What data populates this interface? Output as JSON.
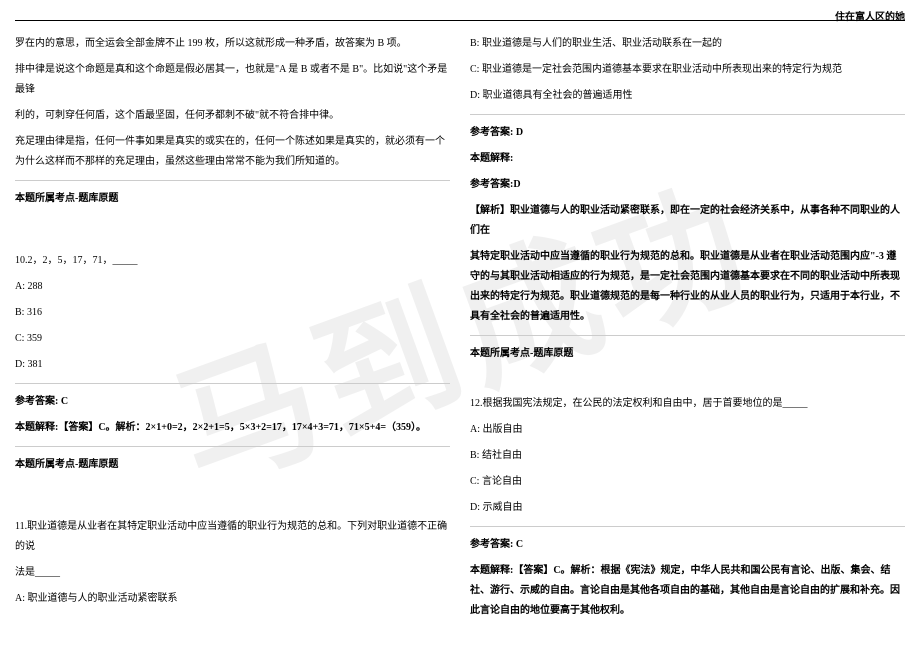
{
  "header": {
    "title": "住在富人区的她"
  },
  "watermark": "马到成功",
  "leftColumn": {
    "para1": "罗在内的意思，而全运会全部金牌不止 199 枚，所以这就形成一种矛盾，故答案为 B 项。",
    "para2": "排中律是说这个命题是真和这个命题是假必居其一，也就是\"A 是 B 或者不是 B\"。比如说\"这个矛是最锋",
    "para3": "利的，可刺穿任何盾，这个盾最坚固，任何矛都刺不破\"就不符合排中律。",
    "para4": "充足理由律是指，任何一件事如果是真实的或实在的，任何一个陈述如果是真实的，就必须有一个为什么这样而不那样的充足理由，虽然这些理由常常不能为我们所知道的。",
    "topicLabel1": "本题所属考点-题库原题",
    "q10num": "10.2，2，5，17，71，_____",
    "q10a": "A: 288",
    "q10b": "B: 316",
    "q10c": "C: 359",
    "q10d": "D: 381",
    "q10answer": "参考答案: C",
    "q10explain": "本题解释:【答案】C。解析：2×1+0=2，2×2+1=5，5×3+2=17，17×4+3=71，71×5+4=（359）。",
    "topicLabel2": "本题所属考点-题库原题",
    "q11": "11.职业道德是从业者在其特定职业活动中应当遵循的职业行为规范的总和。下列对职业道德不正确的说",
    "q11b": "法是_____",
    "q11optA": "A: 职业道德与人的职业活动紧密联系"
  },
  "rightColumn": {
    "q11optB": "B: 职业道德是与人们的职业生活、职业活动联系在一起的",
    "q11optC": "C: 职业道德是一定社会范围内道德基本要求在职业活动中所表现出来的特定行为规范",
    "q11optD": "D: 职业道德具有全社会的普遍适用性",
    "q11answer": "参考答案: D",
    "q11explainLabel": "本题解释:",
    "q11explainAns": "参考答案:D",
    "q11explain1": "【解析】职业道德与人的职业活动紧密联系，即在一定的社会经济关系中，从事各种不同职业的人们在",
    "q11explain2": "其特定职业活动中应当遵循的职业行为规范的总和。职业道德是从业者在职业活动范围内应\"-3 遵守的与其职业活动相适应的行为规范，是一定社会范围内道德基本要求在不同的职业活动中所表现出来的特定行为规范。职业道德规范的是每一种行业的从业人员的职业行为，只适用于本行业，不具有全社会的普遍适用性。",
    "topicLabel": "本题所属考点-题库原题",
    "q12": "12.根据我国宪法规定，在公民的法定权利和自由中，居于首要地位的是_____",
    "q12a": "A: 出版自由",
    "q12b": "B: 结社自由",
    "q12c": "C: 言论自由",
    "q12d": "D: 示威自由",
    "q12answer": "参考答案: C",
    "q12explain": "本题解释:【答案】C。解析：根据《宪法》规定，中华人民共和国公民有言论、出版、集会、结社、游行、示威的自由。言论自由是其他各项自由的基础，其他自由是言论自由的扩展和补充。因此言论自由的地位要高于其他权利。"
  }
}
